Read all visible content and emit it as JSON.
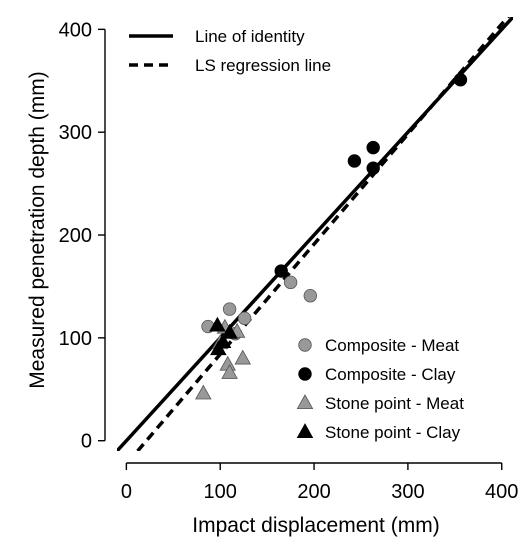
{
  "chart_data": {
    "type": "scatter",
    "xlabel": "Impact displacement (mm)",
    "ylabel": "Measured penetration depth (mm)",
    "xlim": [
      -10,
      412
    ],
    "ylim": [
      -10,
      412
    ],
    "xticks": [
      0,
      100,
      200,
      300,
      400
    ],
    "yticks": [
      0,
      100,
      200,
      300,
      400
    ],
    "grid": false,
    "lines": [
      {
        "name": "Line of identity",
        "style": "solid",
        "color": "#000000",
        "points": [
          [
            -10,
            -10
          ],
          [
            412,
            412
          ]
        ]
      },
      {
        "name": "LS regression line",
        "style": "dashed",
        "color": "#000000",
        "points": [
          [
            12,
            -10
          ],
          [
            412,
            418
          ]
        ]
      }
    ],
    "series": [
      {
        "name": "Composite - Meat",
        "marker": "circle",
        "color": "#999999",
        "points": [
          [
            87,
            111
          ],
          [
            110,
            128
          ],
          [
            126,
            119
          ],
          [
            116,
            104
          ],
          [
            175,
            154
          ],
          [
            196,
            141
          ]
        ]
      },
      {
        "name": "Composite - Clay",
        "marker": "circle",
        "color": "#000000",
        "points": [
          [
            165,
            165
          ],
          [
            243,
            272
          ],
          [
            263,
            285
          ],
          [
            263,
            265
          ],
          [
            356,
            351
          ]
        ]
      },
      {
        "name": "Stone point - Meat",
        "marker": "triangle",
        "color": "#999999",
        "points": [
          [
            82,
            46
          ],
          [
            108,
            74
          ],
          [
            110,
            66
          ],
          [
            124,
            80
          ],
          [
            100,
            95
          ],
          [
            118,
            106
          ],
          [
            105,
            110
          ]
        ]
      },
      {
        "name": "Stone point - Clay",
        "marker": "triangle",
        "color": "#000000",
        "points": [
          [
            97,
            112
          ],
          [
            103,
            96
          ],
          [
            110,
            105
          ],
          [
            98,
            89
          ]
        ]
      }
    ],
    "legend_top": {
      "placement": "top-left",
      "entries": [
        "Line of identity",
        "LS regression line"
      ]
    },
    "legend_bottom": {
      "placement": "bottom-right",
      "entries": [
        "Composite - Meat",
        "Composite - Clay",
        "Stone point - Meat",
        "Stone point - Clay"
      ]
    }
  }
}
